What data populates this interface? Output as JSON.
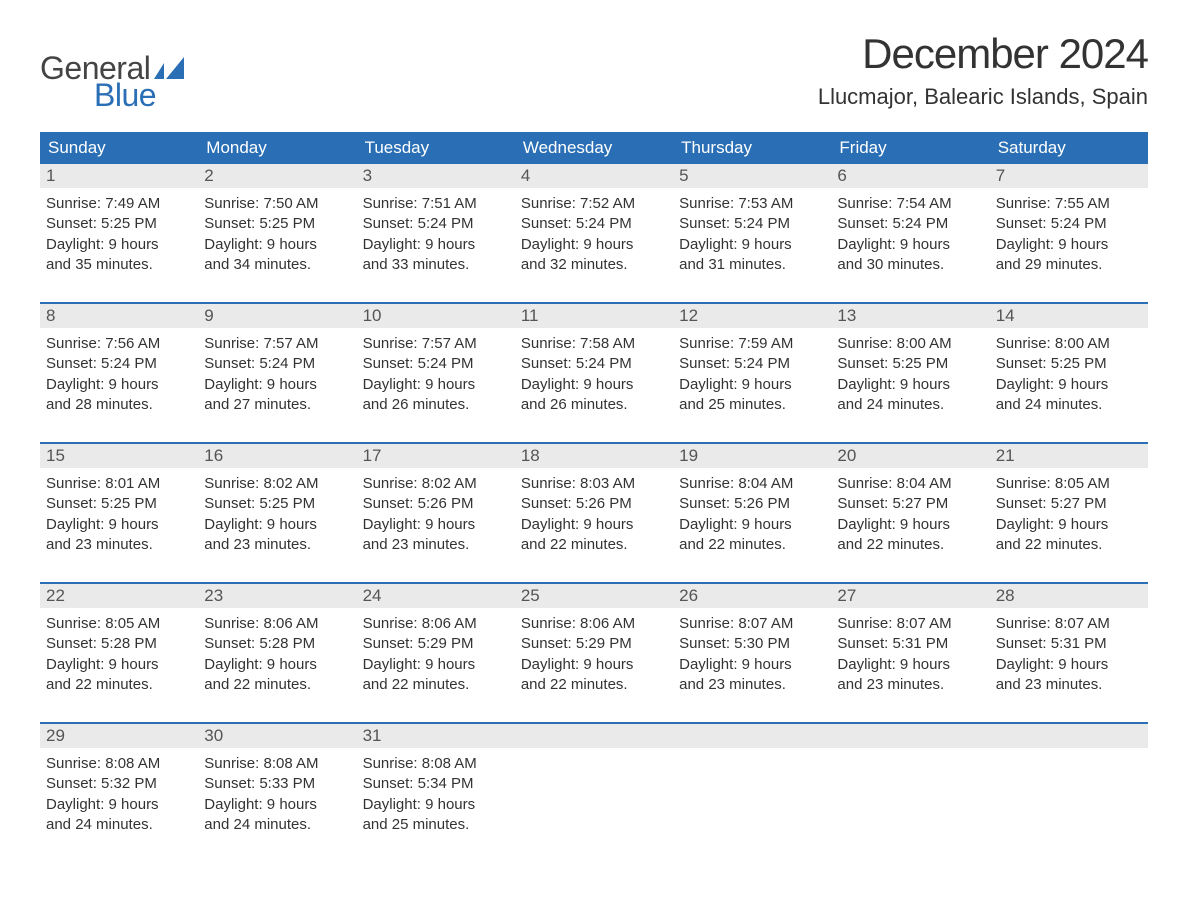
{
  "logo": {
    "text_general": "General",
    "text_blue": "Blue",
    "flag_color": "#2a6fb5"
  },
  "title": "December 2024",
  "location": "Llucmajor, Balearic Islands, Spain",
  "colors": {
    "header_bg": "#2a6fb5",
    "header_text": "#ffffff",
    "daynum_bg": "#eaeaea",
    "daynum_text": "#555555",
    "body_text": "#333333",
    "week_border": "#2a6fb5",
    "background": "#ffffff"
  },
  "typography": {
    "month_title_fontsize": 42,
    "location_fontsize": 22,
    "day_header_fontsize": 17,
    "daynum_fontsize": 17,
    "cell_fontsize": 15
  },
  "day_headers": [
    "Sunday",
    "Monday",
    "Tuesday",
    "Wednesday",
    "Thursday",
    "Friday",
    "Saturday"
  ],
  "weeks": [
    [
      {
        "n": "1",
        "sunrise": "Sunrise: 7:49 AM",
        "sunset": "Sunset: 5:25 PM",
        "d1": "Daylight: 9 hours",
        "d2": "and 35 minutes."
      },
      {
        "n": "2",
        "sunrise": "Sunrise: 7:50 AM",
        "sunset": "Sunset: 5:25 PM",
        "d1": "Daylight: 9 hours",
        "d2": "and 34 minutes."
      },
      {
        "n": "3",
        "sunrise": "Sunrise: 7:51 AM",
        "sunset": "Sunset: 5:24 PM",
        "d1": "Daylight: 9 hours",
        "d2": "and 33 minutes."
      },
      {
        "n": "4",
        "sunrise": "Sunrise: 7:52 AM",
        "sunset": "Sunset: 5:24 PM",
        "d1": "Daylight: 9 hours",
        "d2": "and 32 minutes."
      },
      {
        "n": "5",
        "sunrise": "Sunrise: 7:53 AM",
        "sunset": "Sunset: 5:24 PM",
        "d1": "Daylight: 9 hours",
        "d2": "and 31 minutes."
      },
      {
        "n": "6",
        "sunrise": "Sunrise: 7:54 AM",
        "sunset": "Sunset: 5:24 PM",
        "d1": "Daylight: 9 hours",
        "d2": "and 30 minutes."
      },
      {
        "n": "7",
        "sunrise": "Sunrise: 7:55 AM",
        "sunset": "Sunset: 5:24 PM",
        "d1": "Daylight: 9 hours",
        "d2": "and 29 minutes."
      }
    ],
    [
      {
        "n": "8",
        "sunrise": "Sunrise: 7:56 AM",
        "sunset": "Sunset: 5:24 PM",
        "d1": "Daylight: 9 hours",
        "d2": "and 28 minutes."
      },
      {
        "n": "9",
        "sunrise": "Sunrise: 7:57 AM",
        "sunset": "Sunset: 5:24 PM",
        "d1": "Daylight: 9 hours",
        "d2": "and 27 minutes."
      },
      {
        "n": "10",
        "sunrise": "Sunrise: 7:57 AM",
        "sunset": "Sunset: 5:24 PM",
        "d1": "Daylight: 9 hours",
        "d2": "and 26 minutes."
      },
      {
        "n": "11",
        "sunrise": "Sunrise: 7:58 AM",
        "sunset": "Sunset: 5:24 PM",
        "d1": "Daylight: 9 hours",
        "d2": "and 26 minutes."
      },
      {
        "n": "12",
        "sunrise": "Sunrise: 7:59 AM",
        "sunset": "Sunset: 5:24 PM",
        "d1": "Daylight: 9 hours",
        "d2": "and 25 minutes."
      },
      {
        "n": "13",
        "sunrise": "Sunrise: 8:00 AM",
        "sunset": "Sunset: 5:25 PM",
        "d1": "Daylight: 9 hours",
        "d2": "and 24 minutes."
      },
      {
        "n": "14",
        "sunrise": "Sunrise: 8:00 AM",
        "sunset": "Sunset: 5:25 PM",
        "d1": "Daylight: 9 hours",
        "d2": "and 24 minutes."
      }
    ],
    [
      {
        "n": "15",
        "sunrise": "Sunrise: 8:01 AM",
        "sunset": "Sunset: 5:25 PM",
        "d1": "Daylight: 9 hours",
        "d2": "and 23 minutes."
      },
      {
        "n": "16",
        "sunrise": "Sunrise: 8:02 AM",
        "sunset": "Sunset: 5:25 PM",
        "d1": "Daylight: 9 hours",
        "d2": "and 23 minutes."
      },
      {
        "n": "17",
        "sunrise": "Sunrise: 8:02 AM",
        "sunset": "Sunset: 5:26 PM",
        "d1": "Daylight: 9 hours",
        "d2": "and 23 minutes."
      },
      {
        "n": "18",
        "sunrise": "Sunrise: 8:03 AM",
        "sunset": "Sunset: 5:26 PM",
        "d1": "Daylight: 9 hours",
        "d2": "and 22 minutes."
      },
      {
        "n": "19",
        "sunrise": "Sunrise: 8:04 AM",
        "sunset": "Sunset: 5:26 PM",
        "d1": "Daylight: 9 hours",
        "d2": "and 22 minutes."
      },
      {
        "n": "20",
        "sunrise": "Sunrise: 8:04 AM",
        "sunset": "Sunset: 5:27 PM",
        "d1": "Daylight: 9 hours",
        "d2": "and 22 minutes."
      },
      {
        "n": "21",
        "sunrise": "Sunrise: 8:05 AM",
        "sunset": "Sunset: 5:27 PM",
        "d1": "Daylight: 9 hours",
        "d2": "and 22 minutes."
      }
    ],
    [
      {
        "n": "22",
        "sunrise": "Sunrise: 8:05 AM",
        "sunset": "Sunset: 5:28 PM",
        "d1": "Daylight: 9 hours",
        "d2": "and 22 minutes."
      },
      {
        "n": "23",
        "sunrise": "Sunrise: 8:06 AM",
        "sunset": "Sunset: 5:28 PM",
        "d1": "Daylight: 9 hours",
        "d2": "and 22 minutes."
      },
      {
        "n": "24",
        "sunrise": "Sunrise: 8:06 AM",
        "sunset": "Sunset: 5:29 PM",
        "d1": "Daylight: 9 hours",
        "d2": "and 22 minutes."
      },
      {
        "n": "25",
        "sunrise": "Sunrise: 8:06 AM",
        "sunset": "Sunset: 5:29 PM",
        "d1": "Daylight: 9 hours",
        "d2": "and 22 minutes."
      },
      {
        "n": "26",
        "sunrise": "Sunrise: 8:07 AM",
        "sunset": "Sunset: 5:30 PM",
        "d1": "Daylight: 9 hours",
        "d2": "and 23 minutes."
      },
      {
        "n": "27",
        "sunrise": "Sunrise: 8:07 AM",
        "sunset": "Sunset: 5:31 PM",
        "d1": "Daylight: 9 hours",
        "d2": "and 23 minutes."
      },
      {
        "n": "28",
        "sunrise": "Sunrise: 8:07 AM",
        "sunset": "Sunset: 5:31 PM",
        "d1": "Daylight: 9 hours",
        "d2": "and 23 minutes."
      }
    ],
    [
      {
        "n": "29",
        "sunrise": "Sunrise: 8:08 AM",
        "sunset": "Sunset: 5:32 PM",
        "d1": "Daylight: 9 hours",
        "d2": "and 24 minutes."
      },
      {
        "n": "30",
        "sunrise": "Sunrise: 8:08 AM",
        "sunset": "Sunset: 5:33 PM",
        "d1": "Daylight: 9 hours",
        "d2": "and 24 minutes."
      },
      {
        "n": "31",
        "sunrise": "Sunrise: 8:08 AM",
        "sunset": "Sunset: 5:34 PM",
        "d1": "Daylight: 9 hours",
        "d2": "and 25 minutes."
      },
      null,
      null,
      null,
      null
    ]
  ]
}
